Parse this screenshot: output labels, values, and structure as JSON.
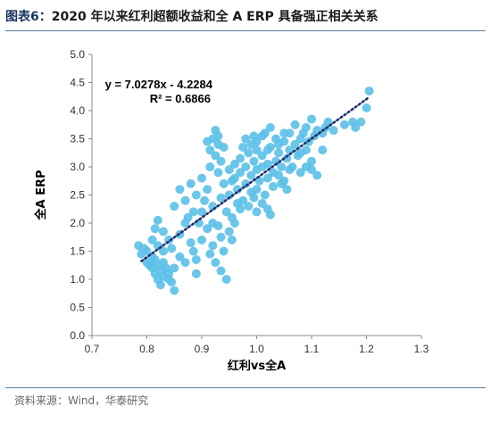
{
  "header": {
    "label": "图表6：",
    "title": "2020 年以来红利超额收益和全 A ERP 具备强正相关关系"
  },
  "footer": {
    "source": "资料来源：Wind，华泰研究"
  },
  "chart_data": {
    "type": "scatter",
    "xlabel": "红利vs全A",
    "ylabel": "全A ERP",
    "xlim": [
      0.7,
      1.3
    ],
    "ylim": [
      0.0,
      5.0
    ],
    "xticks": [
      "0.7",
      "0.8",
      "0.9",
      "1.0",
      "1.1",
      "1.2",
      "1.3"
    ],
    "yticks": [
      "0.0",
      "0.5",
      "1.0",
      "1.5",
      "2.0",
      "2.5",
      "3.0",
      "3.5",
      "4.0",
      "4.5",
      "5.0"
    ],
    "grid": false,
    "point_color": "#5bc0e8",
    "trend_color": "#1f2f6e",
    "trendline": {
      "slope": 7.0278,
      "intercept": -4.2284,
      "x_range": [
        0.79,
        1.205
      ]
    },
    "annotations": {
      "equation": "y = 7.0278x - 4.2284",
      "r2": "R² = 0.6866"
    },
    "points": [
      [
        0.785,
        1.6
      ],
      [
        0.79,
        1.45
      ],
      [
        0.795,
        1.55
      ],
      [
        0.8,
        1.3
      ],
      [
        0.8,
        1.5
      ],
      [
        0.805,
        1.25
      ],
      [
        0.81,
        1.2
      ],
      [
        0.81,
        1.4
      ],
      [
        0.815,
        1.1
      ],
      [
        0.815,
        1.35
      ],
      [
        0.82,
        1.0
      ],
      [
        0.82,
        1.25
      ],
      [
        0.82,
        1.6
      ],
      [
        0.825,
        0.9
      ],
      [
        0.825,
        1.15
      ],
      [
        0.83,
        1.05
      ],
      [
        0.83,
        1.3
      ],
      [
        0.83,
        1.5
      ],
      [
        0.835,
        1.2
      ],
      [
        0.84,
        1.0
      ],
      [
        0.84,
        1.1
      ],
      [
        0.845,
        0.95
      ],
      [
        0.85,
        1.2
      ],
      [
        0.85,
        0.8
      ],
      [
        0.81,
        1.7
      ],
      [
        0.815,
        1.9
      ],
      [
        0.82,
        2.05
      ],
      [
        0.83,
        1.85
      ],
      [
        0.84,
        1.7
      ],
      [
        0.845,
        1.55
      ],
      [
        0.85,
        2.3
      ],
      [
        0.86,
        1.8
      ],
      [
        0.86,
        1.4
      ],
      [
        0.87,
        2.0
      ],
      [
        0.87,
        1.3
      ],
      [
        0.875,
        2.1
      ],
      [
        0.88,
        1.65
      ],
      [
        0.885,
        1.5
      ],
      [
        0.89,
        1.1
      ],
      [
        0.89,
        1.35
      ],
      [
        0.86,
        2.6
      ],
      [
        0.87,
        2.4
      ],
      [
        0.88,
        2.7
      ],
      [
        0.885,
        2.2
      ],
      [
        0.89,
        2.5
      ],
      [
        0.895,
        2.0
      ],
      [
        0.9,
        2.2
      ],
      [
        0.9,
        2.8
      ],
      [
        0.905,
        2.4
      ],
      [
        0.91,
        1.9
      ],
      [
        0.91,
        2.6
      ],
      [
        0.915,
        3.0
      ],
      [
        0.92,
        2.3
      ],
      [
        0.92,
        2.0
      ],
      [
        0.925,
        3.2
      ],
      [
        0.93,
        2.9
      ],
      [
        0.93,
        3.4
      ],
      [
        0.935,
        2.45
      ],
      [
        0.94,
        2.7
      ],
      [
        0.945,
        2.2
      ],
      [
        0.95,
        2.5
      ],
      [
        0.955,
        2.1
      ],
      [
        0.96,
        2.8
      ],
      [
        0.965,
        2.35
      ],
      [
        0.91,
        3.45
      ],
      [
        0.915,
        3.3
      ],
      [
        0.92,
        3.5
      ],
      [
        0.925,
        3.65
      ],
      [
        0.93,
        3.55
      ],
      [
        0.935,
        3.1
      ],
      [
        0.94,
        3.35
      ],
      [
        0.93,
        1.95
      ],
      [
        0.935,
        1.75
      ],
      [
        0.94,
        1.5
      ],
      [
        0.925,
        1.3
      ],
      [
        0.935,
        1.15
      ],
      [
        0.945,
        1.0
      ],
      [
        0.92,
        1.6
      ],
      [
        0.915,
        1.45
      ],
      [
        0.9,
        1.7
      ],
      [
        0.95,
        2.95
      ],
      [
        0.955,
        2.75
      ],
      [
        0.96,
        3.05
      ],
      [
        0.965,
        2.6
      ],
      [
        0.97,
        2.9
      ],
      [
        0.97,
        3.15
      ],
      [
        0.975,
        2.4
      ],
      [
        0.98,
        2.7
      ],
      [
        0.98,
        3.0
      ],
      [
        0.985,
        3.25
      ],
      [
        0.99,
        2.55
      ],
      [
        0.99,
        2.85
      ],
      [
        0.995,
        3.1
      ],
      [
        1.0,
        2.6
      ],
      [
        1.0,
        2.95
      ],
      [
        1.0,
        3.3
      ],
      [
        1.005,
        2.75
      ],
      [
        1.01,
        3.0
      ],
      [
        1.01,
        3.2
      ],
      [
        1.015,
        2.5
      ],
      [
        1.02,
        2.8
      ],
      [
        1.02,
        3.05
      ],
      [
        1.025,
        3.35
      ],
      [
        1.03,
        2.9
      ],
      [
        1.03,
        2.65
      ],
      [
        1.035,
        3.1
      ],
      [
        1.04,
        2.85
      ],
      [
        1.04,
        3.25
      ],
      [
        1.045,
        3.0
      ],
      [
        1.05,
        2.75
      ],
      [
        1.05,
        3.45
      ],
      [
        1.055,
        3.15
      ],
      [
        0.975,
        3.35
      ],
      [
        0.98,
        3.5
      ],
      [
        0.99,
        3.4
      ],
      [
        1.0,
        3.45
      ],
      [
        1.01,
        3.55
      ],
      [
        1.02,
        3.3
      ],
      [
        0.97,
        2.25
      ],
      [
        0.985,
        2.3
      ],
      [
        1.0,
        2.2
      ],
      [
        1.01,
        2.35
      ],
      [
        1.02,
        2.25
      ],
      [
        1.025,
        2.15
      ],
      [
        0.995,
        2.45
      ],
      [
        0.96,
        2.0
      ],
      [
        0.95,
        1.85
      ],
      [
        0.955,
        1.7
      ],
      [
        1.06,
        3.3
      ],
      [
        1.06,
        3.6
      ],
      [
        1.065,
        3.0
      ],
      [
        1.07,
        3.4
      ],
      [
        1.07,
        3.75
      ],
      [
        1.075,
        3.2
      ],
      [
        1.08,
        3.5
      ],
      [
        1.08,
        2.9
      ],
      [
        1.085,
        3.6
      ],
      [
        1.09,
        3.3
      ],
      [
        1.09,
        3.7
      ],
      [
        1.095,
        3.45
      ],
      [
        1.1,
        3.85
      ],
      [
        1.1,
        3.1
      ],
      [
        1.105,
        3.55
      ],
      [
        1.11,
        3.65
      ],
      [
        1.11,
        2.85
      ],
      [
        1.12,
        3.3
      ],
      [
        1.12,
        3.6
      ],
      [
        1.125,
        3.7
      ],
      [
        1.13,
        3.8
      ],
      [
        1.14,
        3.65
      ],
      [
        1.16,
        3.75
      ],
      [
        1.175,
        3.8
      ],
      [
        1.18,
        3.7
      ],
      [
        1.19,
        3.8
      ],
      [
        1.2,
        4.05
      ],
      [
        1.205,
        4.35
      ],
      [
        1.1,
        2.95
      ],
      [
        1.09,
        3.0
      ],
      [
        1.08,
        3.25
      ],
      [
        1.06,
        2.95
      ],
      [
        1.055,
        2.6
      ],
      [
        1.045,
        2.7
      ],
      [
        1.035,
        3.5
      ],
      [
        1.025,
        3.7
      ],
      [
        1.015,
        3.6
      ],
      [
        0.995,
        3.55
      ],
      [
        1.05,
        3.6
      ],
      [
        1.04,
        3.4
      ]
    ]
  }
}
